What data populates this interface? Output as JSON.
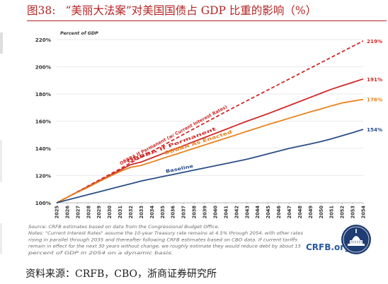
{
  "figure": {
    "number": "图38:",
    "title": "“美丽大法案”对美国国债占 GDP 比重的影响（%）",
    "source": "资料来源：CRFB，CBO，浙商证券研究所"
  },
  "chart_data": {
    "type": "line",
    "ylabel": "Percent of GDP",
    "ylim": [
      100,
      220
    ],
    "yticks": [
      100,
      120,
      140,
      160,
      180,
      200,
      220
    ],
    "ytick_labels": [
      "100%",
      "120%",
      "140%",
      "160%",
      "180%",
      "200%",
      "220%"
    ],
    "x": [
      2025,
      2026,
      2027,
      2028,
      2029,
      2030,
      2031,
      2032,
      2033,
      2034,
      2035,
      2036,
      2037,
      2038,
      2039,
      2040,
      2041,
      2042,
      2043,
      2044,
      2045,
      2046,
      2047,
      2048,
      2049,
      2050,
      2051,
      2052,
      2053,
      2054
    ],
    "grid": true,
    "series": [
      {
        "name": "OBBBA If Permanent (w/ Current Interest Rates)",
        "end_label": "219%",
        "color": "#cf2a2a",
        "dashed": true,
        "values": [
          100,
          104,
          108.2,
          112.4,
          116.6,
          120.8,
          125,
          129.3,
          133.5,
          137.7,
          141.9,
          146.1,
          150.3,
          154.5,
          158.7,
          162.8,
          166.9,
          171,
          175,
          179,
          183,
          187,
          191,
          195,
          199,
          203,
          207,
          211,
          215,
          219
        ]
      },
      {
        "name": "OBBBA If Permanent",
        "end_label": "191%",
        "color": "#cf2a2a",
        "dashed": false,
        "values": [
          100,
          104,
          108,
          112,
          116,
          120,
          124,
          128,
          130,
          133,
          136,
          139,
          142,
          145,
          148,
          151,
          154,
          157,
          160,
          162.7,
          165.5,
          168.5,
          171.5,
          174.5,
          177.5,
          180.5,
          183.5,
          186,
          188.5,
          191
        ]
      },
      {
        "name": "OBBBA As Enacted",
        "end_label": "176%",
        "color": "#e8821c",
        "dashed": false,
        "values": [
          100,
          104,
          107.8,
          111.5,
          115.5,
          119.3,
          123,
          126,
          127.5,
          130,
          132.5,
          135,
          137.5,
          140,
          142.5,
          145,
          147.5,
          150,
          152.5,
          155,
          157.5,
          159.8,
          162.2,
          164.5,
          166.8,
          169,
          171.3,
          173.4,
          174.7,
          176
        ]
      },
      {
        "name": "Baseline",
        "end_label": "154%",
        "color": "#2a4f86",
        "dashed": false,
        "values": [
          100,
          102,
          104,
          106,
          108,
          110,
          112,
          114,
          116,
          117.6,
          119.2,
          120.8,
          122.4,
          124,
          125.6,
          127.2,
          128.8,
          130.4,
          132,
          134,
          136,
          138,
          140,
          141.6,
          143.2,
          145,
          147,
          149.3,
          151.6,
          154
        ]
      }
    ],
    "notes": [
      "Source: CRFB estimates based on data from the Congressional Budget Office.",
      "Notes: \"Current Interest Rates\" assume the 10-year Treasury rate remains at 4.5% through 2054, with other rates",
      "rising in parallel through 2035 and thereafter following CRFB estimates based on CBO data. If current tariffs",
      "remain in effect for the next 30 years without change, we roughly estimate they would reduce debt by about 15",
      "percent of GDP in 2054 on a dynamic basis."
    ],
    "logo_text": "CRFB.org"
  }
}
